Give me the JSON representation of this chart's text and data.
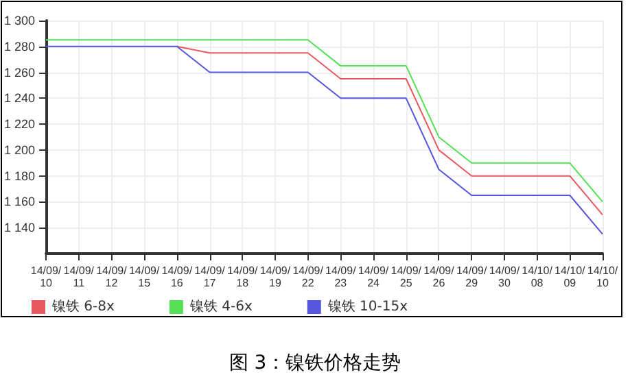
{
  "chart_data": {
    "type": "line",
    "annotations": [
      "图 3：镍铁价格走势"
    ],
    "categories": [
      "14/09/10",
      "14/09/11",
      "14/09/12",
      "14/09/15",
      "14/09/16",
      "14/09/17",
      "14/09/18",
      "14/09/19",
      "14/09/22",
      "14/09/23",
      "14/09/24",
      "14/09/25",
      "14/09/26",
      "14/09/29",
      "14/09/30",
      "14/10/08",
      "14/10/09",
      "14/10/10"
    ],
    "series": [
      {
        "name": "镍铁 6-8x",
        "color": "#e8595f",
        "values": [
          null,
          null,
          null,
          null,
          1280,
          1275,
          1275,
          1275,
          1275,
          1255,
          1255,
          1255,
          1200,
          1180,
          1180,
          1180,
          1180,
          1150
        ]
      },
      {
        "name": "镍铁 4-6x",
        "color": "#55e055",
        "values": [
          1285,
          1285,
          1285,
          1285,
          1285,
          1285,
          1285,
          1285,
          1285,
          1265,
          1265,
          1265,
          1210,
          1190,
          1190,
          1190,
          1190,
          1160
        ]
      },
      {
        "name": "镍铁 10-15x",
        "color": "#5555dd",
        "values": [
          1280,
          1280,
          1280,
          1280,
          1280,
          1260,
          1260,
          1260,
          1260,
          1240,
          1240,
          1240,
          1185,
          1165,
          1165,
          1165,
          1165,
          1135
        ]
      }
    ],
    "ylim": [
      1120,
      1300
    ],
    "yticks": [
      {
        "value": 1140,
        "label": "1 140"
      },
      {
        "value": 1160,
        "label": "1 160"
      },
      {
        "value": 1180,
        "label": "1 180"
      },
      {
        "value": 1200,
        "label": "1 200"
      },
      {
        "value": 1220,
        "label": "1 220"
      },
      {
        "value": 1240,
        "label": "1 240"
      },
      {
        "value": 1260,
        "label": "1 260"
      },
      {
        "value": 1280,
        "label": "1 280"
      },
      {
        "value": 1300,
        "label": "1 300"
      }
    ],
    "grid": true,
    "legend": "bottom left",
    "marker": "none",
    "line_style": "solid"
  }
}
